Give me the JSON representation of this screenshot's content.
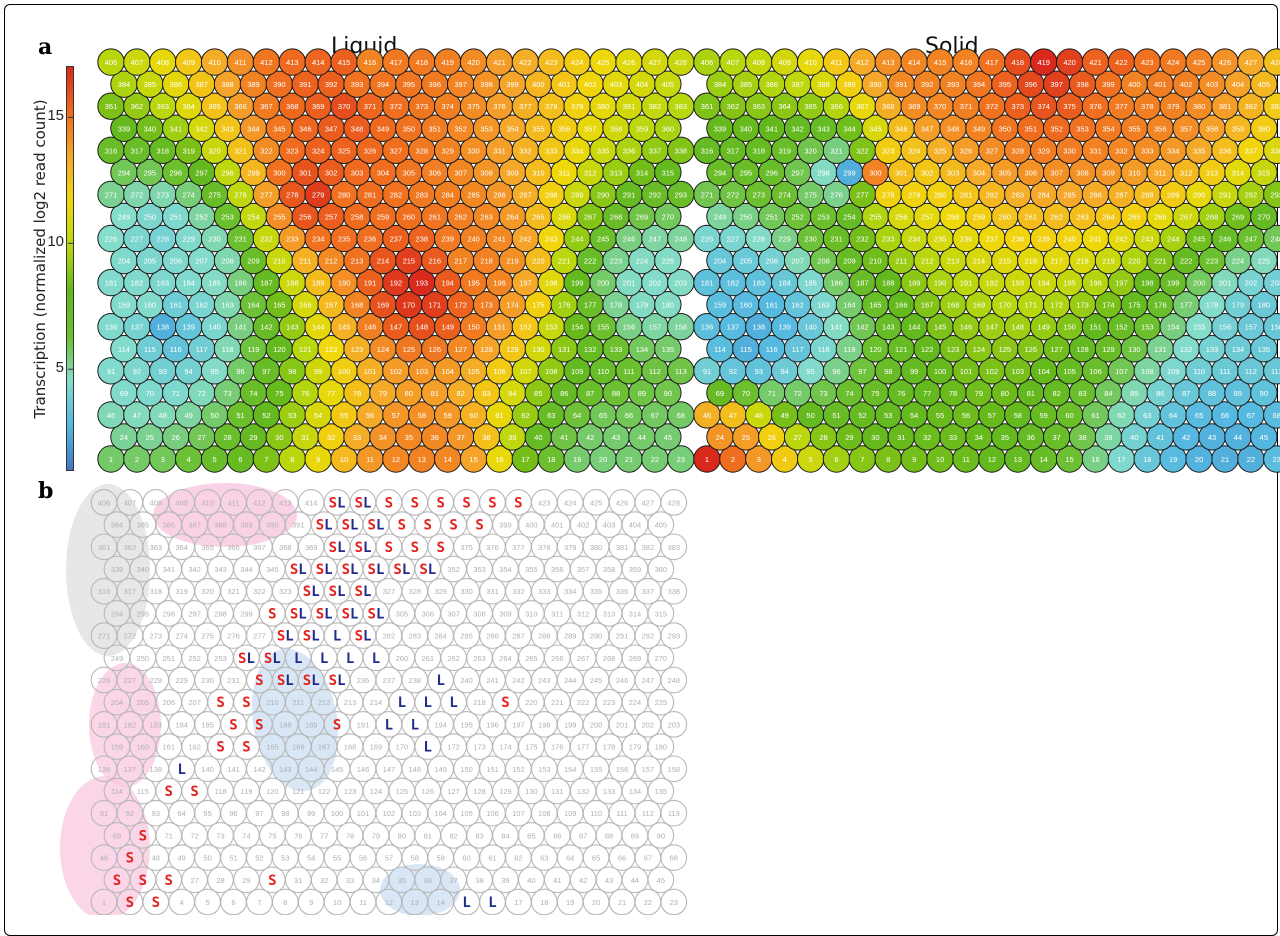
{
  "panel_a_label": "a",
  "panel_b_label": "b",
  "colorbar": {
    "label": "Transcription (normalized log2 read count)",
    "ticks": [
      {
        "value": 15,
        "label": "15"
      },
      {
        "value": 10,
        "label": "10"
      },
      {
        "value": 5,
        "label": "5"
      }
    ],
    "range": [
      1,
      17
    ]
  },
  "palette": {
    "stops": [
      "#3f78c0",
      "#55b8e0",
      "#84dccb",
      "#6cbf2e",
      "#63b81d",
      "#b8d70e",
      "#f0d80a",
      "#f5a82a",
      "#ef6a1e",
      "#d9281c"
    ],
    "panel_b_grid": "#b8b8b8",
    "S_color": "#e3221c",
    "L_color": "#1f2a8c",
    "blob_pink": "#f9c7e0",
    "blob_gray": "#e3e3e3",
    "blob_blue": "#cfe0f3"
  },
  "chart_data": [
    {
      "type": "heatmap",
      "title": "Liquid",
      "grid": {
        "rows": 19,
        "cols_even_row": 23,
        "cols_odd_row": 22,
        "numbering": "bottom-up, left-to-right, 1–437",
        "cell_shape": "hexagon-packed circle"
      },
      "anchors": [
        {
          "cell": 415,
          "value": 15.5
        },
        {
          "cell": 416,
          "value": 14.5
        },
        {
          "cell": 392,
          "value": 15.5
        },
        {
          "cell": 393,
          "value": 15
        },
        {
          "cell": 370,
          "value": 16
        },
        {
          "cell": 279,
          "value": 16.5
        },
        {
          "cell": 280,
          "value": 15
        },
        {
          "cell": 217,
          "value": 14.5
        },
        {
          "cell": 193,
          "value": 17
        },
        {
          "cell": 13,
          "value": 14.5
        },
        {
          "cell": 138,
          "value": 2.5
        },
        {
          "cell": 228,
          "value": 4
        },
        {
          "cell": 159,
          "value": 4.5
        },
        {
          "cell": 160,
          "value": 4.5
        },
        {
          "cell": 114,
          "value": 4.5
        },
        {
          "cell": 202,
          "value": 4.5
        },
        {
          "cell": 207,
          "value": 4.5
        },
        {
          "cell": 20,
          "value": 5.5
        },
        {
          "cell": 23,
          "value": 5.5
        }
      ]
    },
    {
      "type": "heatmap",
      "title": "Solid",
      "grid": {
        "rows": 19,
        "cols_even_row": 23,
        "cols_odd_row": 22,
        "numbering": "bottom-up, left-to-right, 1–437",
        "cell_shape": "hexagon-packed circle"
      },
      "anchors": [
        {
          "cell": 415,
          "value": 14.5
        },
        {
          "cell": 416,
          "value": 14.5
        },
        {
          "cell": 417,
          "value": 15
        },
        {
          "cell": 418,
          "value": 16
        },
        {
          "cell": 419,
          "value": 17
        },
        {
          "cell": 422,
          "value": 15.5
        },
        {
          "cell": 392,
          "value": 14.5
        },
        {
          "cell": 400,
          "value": 14.5
        },
        {
          "cell": 300,
          "value": 14.5
        },
        {
          "cell": 1,
          "value": 17
        },
        {
          "cell": 24,
          "value": 14
        },
        {
          "cell": 299,
          "value": 2.5
        },
        {
          "cell": 138,
          "value": 2.5
        },
        {
          "cell": 115,
          "value": 2.5
        },
        {
          "cell": 114,
          "value": 3
        },
        {
          "cell": 21,
          "value": 2.5
        },
        {
          "cell": 22,
          "value": 2.5
        },
        {
          "cell": 23,
          "value": 3
        },
        {
          "cell": 158,
          "value": 3.5
        },
        {
          "cell": 159,
          "value": 3
        }
      ]
    }
  ],
  "panel_b": {
    "grid": {
      "rows": 19,
      "cols_even_row": 23,
      "cols_odd_row": 22,
      "numbering": "bottom-up, left-to-right, 1–437"
    },
    "marks": [
      {
        "cell": 415,
        "text": "SL"
      },
      {
        "cell": 416,
        "text": "SL"
      },
      {
        "cell": 417,
        "text": "S"
      },
      {
        "cell": 418,
        "text": "S"
      },
      {
        "cell": 419,
        "text": "S"
      },
      {
        "cell": 420,
        "text": "S"
      },
      {
        "cell": 421,
        "text": "S"
      },
      {
        "cell": 422,
        "text": "S"
      },
      {
        "cell": 392,
        "text": "SL"
      },
      {
        "cell": 393,
        "text": "SL"
      },
      {
        "cell": 394,
        "text": "SL"
      },
      {
        "cell": 395,
        "text": "S"
      },
      {
        "cell": 396,
        "text": "S"
      },
      {
        "cell": 397,
        "text": "S"
      },
      {
        "cell": 398,
        "text": "S"
      },
      {
        "cell": 370,
        "text": "SL"
      },
      {
        "cell": 371,
        "text": "SL"
      },
      {
        "cell": 372,
        "text": "S"
      },
      {
        "cell": 373,
        "text": "S"
      },
      {
        "cell": 374,
        "text": "S"
      },
      {
        "cell": 346,
        "text": "SL"
      },
      {
        "cell": 347,
        "text": "SL"
      },
      {
        "cell": 348,
        "text": "SL"
      },
      {
        "cell": 349,
        "text": "SL"
      },
      {
        "cell": 350,
        "text": "SL"
      },
      {
        "cell": 351,
        "text": "SL"
      },
      {
        "cell": 324,
        "text": "SL"
      },
      {
        "cell": 325,
        "text": "SL"
      },
      {
        "cell": 326,
        "text": "SL"
      },
      {
        "cell": 300,
        "text": "S"
      },
      {
        "cell": 301,
        "text": "SL"
      },
      {
        "cell": 302,
        "text": "SL"
      },
      {
        "cell": 303,
        "text": "SL"
      },
      {
        "cell": 304,
        "text": "SL"
      },
      {
        "cell": 278,
        "text": "SL"
      },
      {
        "cell": 279,
        "text": "SL"
      },
      {
        "cell": 280,
        "text": "L"
      },
      {
        "cell": 281,
        "text": "SL"
      },
      {
        "cell": 254,
        "text": "SL"
      },
      {
        "cell": 255,
        "text": "SL"
      },
      {
        "cell": 256,
        "text": "L"
      },
      {
        "cell": 257,
        "text": "L"
      },
      {
        "cell": 258,
        "text": "L"
      },
      {
        "cell": 259,
        "text": "L"
      },
      {
        "cell": 232,
        "text": "S"
      },
      {
        "cell": 233,
        "text": "SL"
      },
      {
        "cell": 234,
        "text": "SL"
      },
      {
        "cell": 235,
        "text": "SL"
      },
      {
        "cell": 239,
        "text": "L"
      },
      {
        "cell": 208,
        "text": "S"
      },
      {
        "cell": 209,
        "text": "S"
      },
      {
        "cell": 215,
        "text": "L"
      },
      {
        "cell": 216,
        "text": "L"
      },
      {
        "cell": 217,
        "text": "L"
      },
      {
        "cell": 219,
        "text": "S"
      },
      {
        "cell": 186,
        "text": "S"
      },
      {
        "cell": 187,
        "text": "S"
      },
      {
        "cell": 190,
        "text": "S"
      },
      {
        "cell": 192,
        "text": "L"
      },
      {
        "cell": 193,
        "text": "L"
      },
      {
        "cell": 163,
        "text": "S"
      },
      {
        "cell": 164,
        "text": "S"
      },
      {
        "cell": 171,
        "text": "L"
      },
      {
        "cell": 139,
        "text": "L"
      },
      {
        "cell": 116,
        "text": "S"
      },
      {
        "cell": 117,
        "text": "S"
      },
      {
        "cell": 70,
        "text": "S"
      },
      {
        "cell": 47,
        "text": "S"
      },
      {
        "cell": 24,
        "text": "S"
      },
      {
        "cell": 25,
        "text": "S"
      },
      {
        "cell": 26,
        "text": "S"
      },
      {
        "cell": 30,
        "text": "S"
      },
      {
        "cell": 2,
        "text": "S"
      },
      {
        "cell": 3,
        "text": "S"
      },
      {
        "cell": 15,
        "text": "L"
      },
      {
        "cell": 16,
        "text": "L"
      }
    ]
  }
}
